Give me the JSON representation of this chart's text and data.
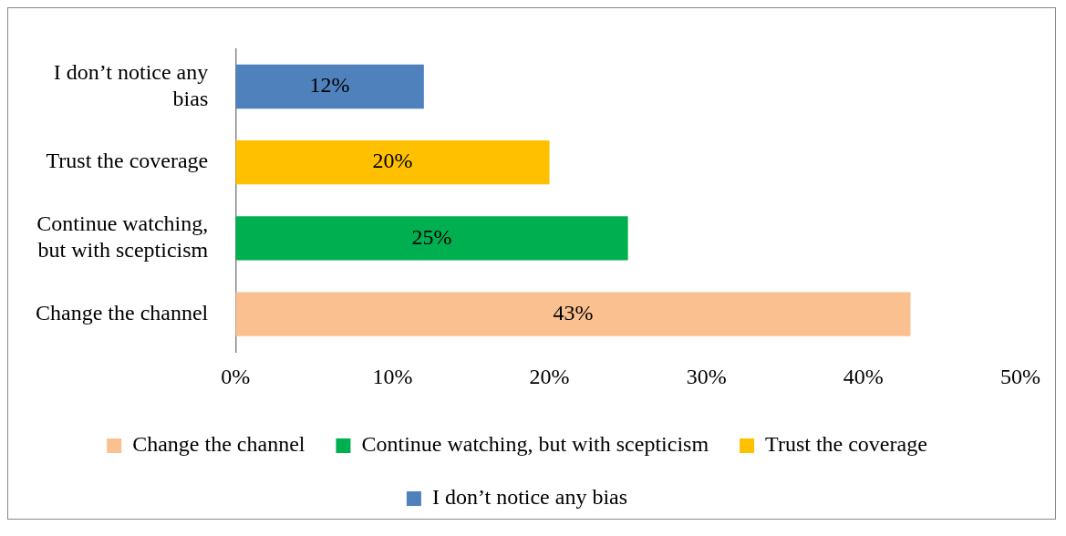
{
  "chart_data": {
    "type": "bar",
    "orientation": "horizontal",
    "categories": [
      "I don’t notice any bias",
      "Trust the coverage",
      "Continue watching, but with scepticism",
      "Change the channel"
    ],
    "series": [
      {
        "name": "Change the channel",
        "color": "#fac090",
        "values": [
          null,
          null,
          null,
          43
        ],
        "value_labels": [
          null,
          null,
          null,
          "43%"
        ]
      },
      {
        "name": "Continue watching, but with scepticism",
        "color": "#00b050",
        "values": [
          null,
          null,
          25,
          null
        ],
        "value_labels": [
          null,
          null,
          "25%",
          null
        ]
      },
      {
        "name": "Trust the coverage",
        "color": "#ffc000",
        "values": [
          null,
          20,
          null,
          null
        ],
        "value_labels": [
          null,
          "20%",
          null,
          null
        ]
      },
      {
        "name": "I don’t notice any bias",
        "color": "#4f81bd",
        "values": [
          12,
          null,
          null,
          null
        ],
        "value_labels": [
          "12%",
          null,
          null,
          null
        ]
      }
    ],
    "xlim": [
      0,
      50
    ],
    "xticks": [
      {
        "value": 0,
        "label": "0%"
      },
      {
        "value": 10,
        "label": "10%"
      },
      {
        "value": 20,
        "label": "20%"
      },
      {
        "value": 30,
        "label": "30%"
      },
      {
        "value": 40,
        "label": "40%"
      },
      {
        "value": 50,
        "label": "50%"
      }
    ],
    "grid": false,
    "legend": "bottom"
  }
}
